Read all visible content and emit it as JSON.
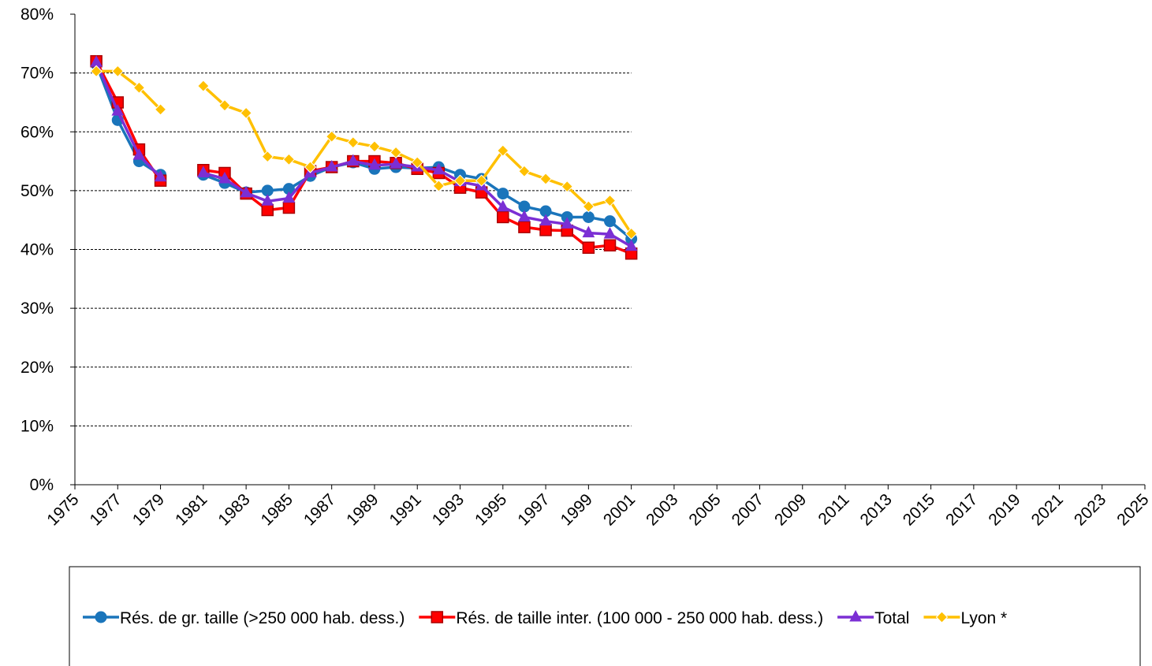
{
  "chart_data": {
    "type": "line",
    "x": [
      1976,
      1977,
      1978,
      1979,
      1980,
      1981,
      1982,
      1983,
      1984,
      1985,
      1986,
      1987,
      1988,
      1989,
      1990,
      1991,
      1992,
      1993,
      1994,
      1995,
      1996,
      1997,
      1998,
      1999,
      2000,
      2001
    ],
    "series": [
      {
        "name": "Rés. de gr. taille (>250 000 hab. dess.)",
        "color": "#1a75bb",
        "marker": "circle",
        "values": [
          71.5,
          62,
          55,
          52.7,
          null,
          52.7,
          51.3,
          49.7,
          50,
          50.3,
          52.5,
          54,
          54.8,
          53.7,
          54,
          53.8,
          54,
          52.7,
          52,
          49.5,
          47.3,
          46.5,
          45.5,
          45.5,
          44.8,
          41.8
        ]
      },
      {
        "name": "Rés. de taille inter. (100 000 - 250 000 hab. dess.)",
        "color": "#ff0000",
        "marker": "square",
        "values": [
          72,
          65,
          57,
          51.7,
          null,
          53.5,
          53,
          49.5,
          46.7,
          47.1,
          53.3,
          54,
          55,
          55,
          54.7,
          53.7,
          53,
          50.5,
          49.7,
          45.5,
          43.8,
          43.3,
          43.2,
          40.3,
          40.7,
          39.3
        ]
      },
      {
        "name": "Total",
        "color": "#7b2fd4",
        "marker": "triangle",
        "values": [
          71.8,
          63.5,
          56,
          52.3,
          null,
          53,
          52,
          49.6,
          48.2,
          48.7,
          53,
          54,
          55,
          54.3,
          54.5,
          54,
          53.5,
          51.5,
          50.8,
          47.2,
          45.5,
          44.8,
          44.3,
          42.8,
          42.6,
          40.5
        ]
      },
      {
        "name": "Lyon *",
        "color": "#ffc000",
        "marker": "diamond",
        "values": [
          70.3,
          70.3,
          67.5,
          63.8,
          null,
          67.8,
          64.5,
          63.2,
          55.8,
          55.3,
          54,
          59.2,
          58.2,
          57.5,
          56.5,
          54.8,
          50.8,
          51.7,
          51.7,
          56.8,
          53.3,
          52,
          50.7,
          47.3,
          48.3,
          42.7
        ]
      }
    ],
    "xlim": [
      1975,
      2025
    ],
    "xticks": [
      1975,
      1977,
      1979,
      1981,
      1983,
      1985,
      1987,
      1989,
      1991,
      1993,
      1995,
      1997,
      1999,
      2001,
      2003,
      2005,
      2007,
      2009,
      2011,
      2013,
      2015,
      2017,
      2019,
      2021,
      2023,
      2025
    ],
    "ylim": [
      0,
      80
    ],
    "yticks": [
      {
        "value": 0,
        "label": "0%"
      },
      {
        "value": 10,
        "label": "10%"
      },
      {
        "value": 20,
        "label": "20%"
      },
      {
        "value": 30,
        "label": "30%"
      },
      {
        "value": 40,
        "label": "40%"
      },
      {
        "value": 50,
        "label": "50%"
      },
      {
        "value": 60,
        "label": "60%"
      },
      {
        "value": 70,
        "label": "70%"
      },
      {
        "value": 80,
        "label": "80%"
      }
    ],
    "grid": true,
    "legend": "bottom"
  }
}
